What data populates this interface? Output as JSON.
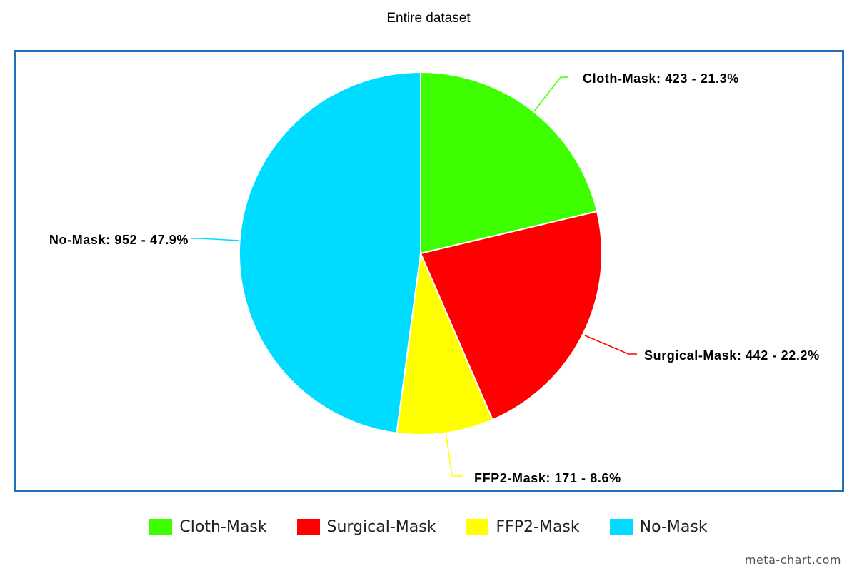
{
  "chart_data": {
    "type": "pie",
    "title": "Entire dataset",
    "slices": [
      {
        "name": "Cloth-Mask",
        "value": 423,
        "percent": 21.3,
        "color": "#3dff00",
        "label": "Cloth-Mask: 423 - 21.3%"
      },
      {
        "name": "Surgical-Mask",
        "value": 442,
        "percent": 22.2,
        "color": "#ff0000",
        "label": "Surgical-Mask: 442 - 22.2%"
      },
      {
        "name": "FFP2-Mask",
        "value": 171,
        "percent": 8.6,
        "color": "#ffff00",
        "label": "FFP2-Mask: 171 - 8.6%"
      },
      {
        "name": "No-Mask",
        "value": 952,
        "percent": 47.9,
        "color": "#00dcff",
        "label": "No-Mask: 952 - 47.9%"
      }
    ],
    "legend": {
      "position": "bottom",
      "items": [
        "Cloth-Mask",
        "Surgical-Mask",
        "FFP2-Mask",
        "No-Mask"
      ]
    }
  },
  "footer": {
    "credit": "meta-chart.com"
  }
}
